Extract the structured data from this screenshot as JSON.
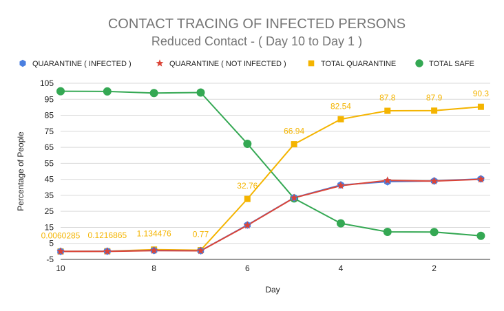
{
  "chart_data": {
    "type": "line",
    "title": "CONTACT TRACING OF INFECTED PERSONS",
    "subtitle": "Reduced Contact - ( Day 10 to Day 1 )",
    "xlabel": "Day",
    "ylabel": "Percentage of People",
    "x": [
      10,
      9,
      8,
      7,
      6,
      5,
      4,
      3,
      2,
      1
    ],
    "xlim": [
      10,
      0.8
    ],
    "x_ticks": [
      "10",
      "8",
      "6",
      "4",
      "2"
    ],
    "x_tick_values": [
      10,
      8,
      6,
      4,
      2
    ],
    "ylim": [
      -5,
      105
    ],
    "y_ticks": [
      "-5",
      "5",
      "15",
      "25",
      "35",
      "45",
      "55",
      "65",
      "75",
      "85",
      "95",
      "105"
    ],
    "y_tick_values": [
      -5,
      5,
      15,
      25,
      35,
      45,
      55,
      65,
      75,
      85,
      95,
      105
    ],
    "grid": true,
    "legend_position": "top",
    "series": [
      {
        "name": "QUARANTINE ( INFECTED )",
        "color": "#4a7fe0",
        "marker": "hexagon",
        "values": [
          0.006,
          0.12,
          0.6,
          0.4,
          16.5,
          33.5,
          41.5,
          43.5,
          44.0,
          45.3
        ]
      },
      {
        "name": "QUARANTINE ( NOT INFECTED )",
        "color": "#db4437",
        "marker": "star",
        "values": [
          0.0,
          0.0,
          0.5,
          0.37,
          16.26,
          33.44,
          41.04,
          44.3,
          43.9,
          45.0
        ]
      },
      {
        "name": "TOTAL QUARANTINE",
        "color": "#f4b400",
        "marker": "square",
        "values": [
          0.0060285,
          0.1216865,
          1.134476,
          0.77,
          32.76,
          66.94,
          82.54,
          87.8,
          87.9,
          90.3
        ],
        "data_labels": [
          "0.0060285",
          "0.1216865",
          "1.134476",
          "0.77",
          "32.76",
          "66.94",
          "82.54",
          "87.8",
          "87.9",
          "90.3"
        ]
      },
      {
        "name": "TOTAL SAFE",
        "color": "#34a853",
        "marker": "circle",
        "values": [
          100,
          99.9,
          98.9,
          99.2,
          67.2,
          33.1,
          17.5,
          12.2,
          12.1,
          9.7
        ]
      }
    ]
  }
}
